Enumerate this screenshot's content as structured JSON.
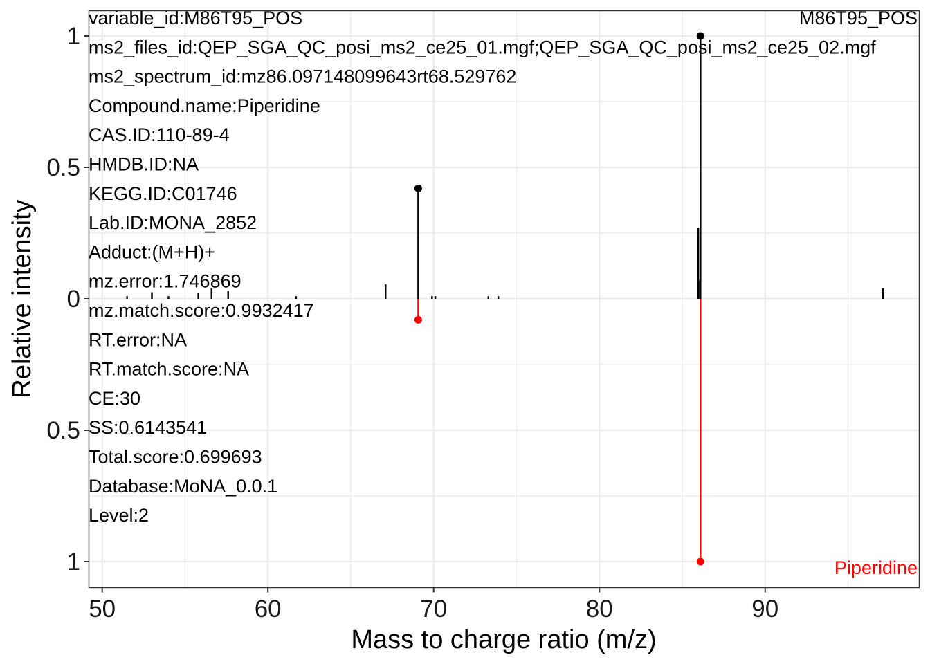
{
  "chart_data": {
    "type": "mirror-spectrum",
    "xlabel": "Mass to charge ratio (m/z)",
    "ylabel": "Relative intensity",
    "xlim": [
      49.2,
      99.3
    ],
    "ylim_top": [
      0,
      1.1
    ],
    "ylim_bottom": [
      0,
      1.1
    ],
    "x_ticks": [
      50,
      60,
      70,
      80,
      90
    ],
    "y_ticks": [
      {
        "value": 1,
        "side": "top",
        "label": "1"
      },
      {
        "value": 0.5,
        "side": "top",
        "label": "0.5"
      },
      {
        "value": 0,
        "side": "top",
        "label": "0"
      },
      {
        "value": 0.5,
        "side": "bottom",
        "label": "0.5"
      },
      {
        "value": 1,
        "side": "bottom",
        "label": "1"
      }
    ],
    "grid": true,
    "top_label": "M86T95_POS",
    "bottom_label": "Piperidine",
    "colors": {
      "experimental": "#000000",
      "library": "#ff0000",
      "grid": "#ebebeb"
    },
    "experimental_peaks": [
      {
        "mz": 51.5,
        "intensity": 0.01
      },
      {
        "mz": 53.0,
        "intensity": 0.025
      },
      {
        "mz": 54.0,
        "intensity": 0.01
      },
      {
        "mz": 55.8,
        "intensity": 0.022
      },
      {
        "mz": 56.6,
        "intensity": 0.04
      },
      {
        "mz": 57.6,
        "intensity": 0.03
      },
      {
        "mz": 61.7,
        "intensity": 0.01
      },
      {
        "mz": 67.1,
        "intensity": 0.055
      },
      {
        "mz": 69.07,
        "intensity": 0.42,
        "matched": true
      },
      {
        "mz": 69.9,
        "intensity": 0.01
      },
      {
        "mz": 70.1,
        "intensity": 0.01
      },
      {
        "mz": 73.3,
        "intensity": 0.01
      },
      {
        "mz": 73.9,
        "intensity": 0.01
      },
      {
        "mz": 85.97,
        "intensity": 0.27
      },
      {
        "mz": 85.99,
        "intensity": 0.07
      },
      {
        "mz": 86.1,
        "intensity": 1.0,
        "matched": true
      },
      {
        "mz": 97.1,
        "intensity": 0.04
      }
    ],
    "library_peaks": [
      {
        "mz": 69.07,
        "intensity": 0.08
      },
      {
        "mz": 86.1,
        "intensity": 1.0
      }
    ],
    "annotations": [
      "variable_id:M86T95_POS",
      "ms2_files_id:QEP_SGA_QC_posi_ms2_ce25_01.mgf;QEP_SGA_QC_posi_ms2_ce25_02.mgf",
      "ms2_spectrum_id:mz86.097148099643rt68.529762",
      "Compound.name:Piperidine",
      "CAS.ID:110-89-4",
      "HMDB.ID:NA",
      "KEGG.ID:C01746",
      "Lab.ID:MONA_2852",
      "Adduct:(M+H)+",
      "mz.error:1.746869",
      "mz.match.score:0.9932417",
      "RT.error:NA",
      "RT.match.score:NA",
      "CE:30",
      "SS:0.6143541",
      "Total.score:0.699693",
      "Database:MoNA_0.0.1",
      "Level:2"
    ]
  }
}
